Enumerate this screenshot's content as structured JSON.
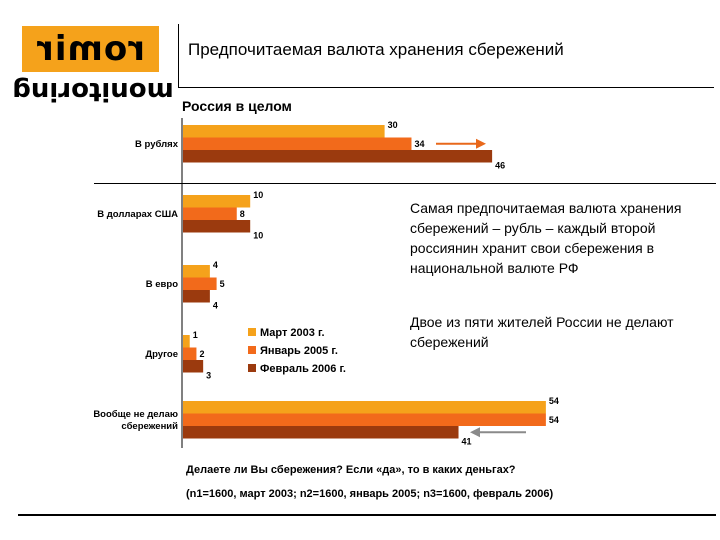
{
  "header": {
    "logo_top": "romir",
    "logo_bottom": "monitoring",
    "title": "Предпочитаемая валюта хранения сбережений",
    "subtitle": "Россия в целом"
  },
  "notes": {
    "note1": "Самая предпочитаемая валюта хранения сбережений – рубль – каждый второй россиянин хранит свои сбережения в национальной валюте РФ",
    "note2": "Двое из пяти жителей России не делают сбережений"
  },
  "footer": {
    "question": "Делаете ли Вы сбережения? Если «да», то в каких деньгах?",
    "sample": "(n1=1600, март 2003; n2=1600, январь 2005; n3=1600, февраль 2006)"
  },
  "chart_data": {
    "type": "bar",
    "orientation": "horizontal",
    "categories": [
      "В рублях",
      "В долларах США",
      "В евро",
      "Другое",
      "Вообще не делаю сбережений"
    ],
    "series": [
      {
        "name": "Март 2003 г.",
        "color": "#f5a21b",
        "values": [
          30,
          10,
          4,
          1,
          54
        ]
      },
      {
        "name": "Январь 2005 г.",
        "color": "#f26a1b",
        "values": [
          34,
          8,
          5,
          2,
          54
        ]
      },
      {
        "name": "Февраль 2006 г.",
        "color": "#9b3a0e",
        "values": [
          46,
          10,
          4,
          3,
          41
        ]
      }
    ],
    "legend_placement": "center-inside",
    "grid": false,
    "arrows": [
      {
        "category": "В рублях",
        "direction": "up",
        "color": "#e8681b"
      },
      {
        "category": "Вообще не делаю сбережений",
        "direction": "down",
        "color": "#8a8a8a"
      }
    ]
  }
}
